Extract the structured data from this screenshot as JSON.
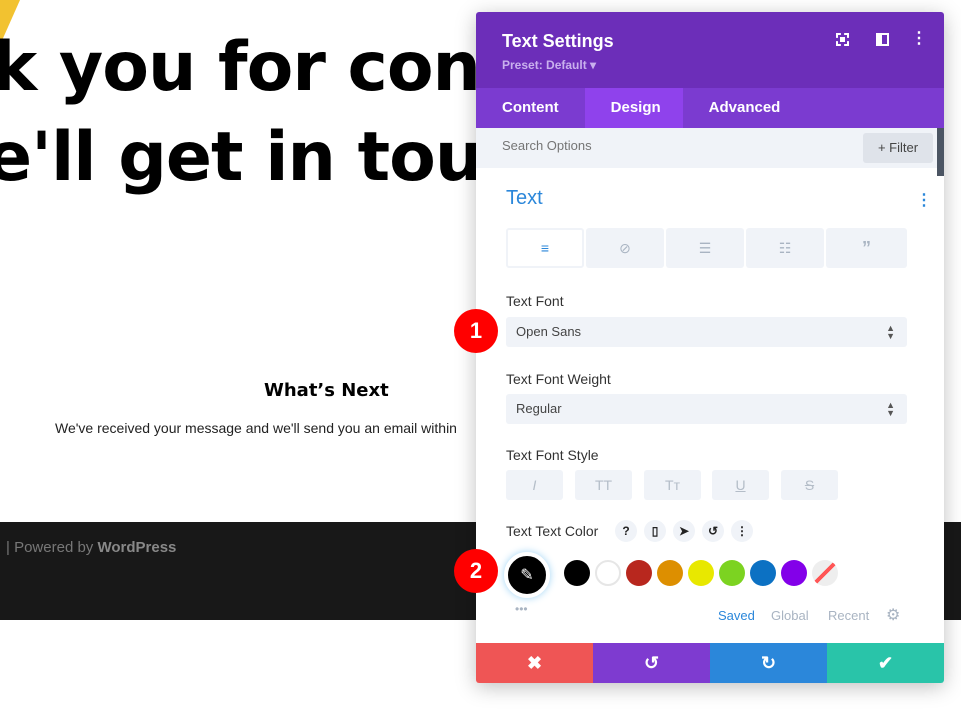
{
  "page": {
    "headline_1": "k you for cont",
    "headline_2": "e'll get in touc",
    "section_title": "What’s Next",
    "body_text": "We've received your message and we'll send you an email within",
    "footer_sep": "|",
    "footer_powered": "Powered by",
    "footer_brand": "WordPress"
  },
  "panel": {
    "title": "Text Settings",
    "preset": "Preset: Default ▾",
    "tabs": [
      {
        "label": "Content"
      },
      {
        "label": "Design"
      },
      {
        "label": "Advanced"
      }
    ],
    "active_tab": "Design",
    "search_placeholder": "Search Options",
    "filter_label": "+ Filter",
    "section_title": "Text",
    "text_font_label": "Text Font",
    "text_font_value": "Open Sans",
    "weight_label": "Text Font Weight",
    "weight_value": "Regular",
    "style_label": "Text Font Style",
    "style_buttons": [
      "I",
      "TT",
      "Tт",
      "U",
      "S"
    ],
    "color_label": "Text Text Color",
    "color_icons": [
      "?",
      "▯",
      "➤",
      "↺",
      "⋮"
    ],
    "swatches": [
      "#000000",
      "#ffffff",
      "#b8271e",
      "#dd8f00",
      "#e8e800",
      "#7cd321",
      "#0c71c3",
      "#8300e9",
      "none"
    ],
    "palette_tabs": [
      "Saved",
      "Global",
      "Recent"
    ],
    "more": "•••"
  },
  "annotations": [
    "1",
    "2"
  ],
  "colors": {
    "header": "#6c2eb9",
    "tabs": "#7b3bd0",
    "active_tab": "#8f42ec",
    "cancel": "#ef5555",
    "undo": "#7e3bd0",
    "redo": "#2b87da",
    "save": "#29c4a9",
    "accent": "#2b87da"
  }
}
